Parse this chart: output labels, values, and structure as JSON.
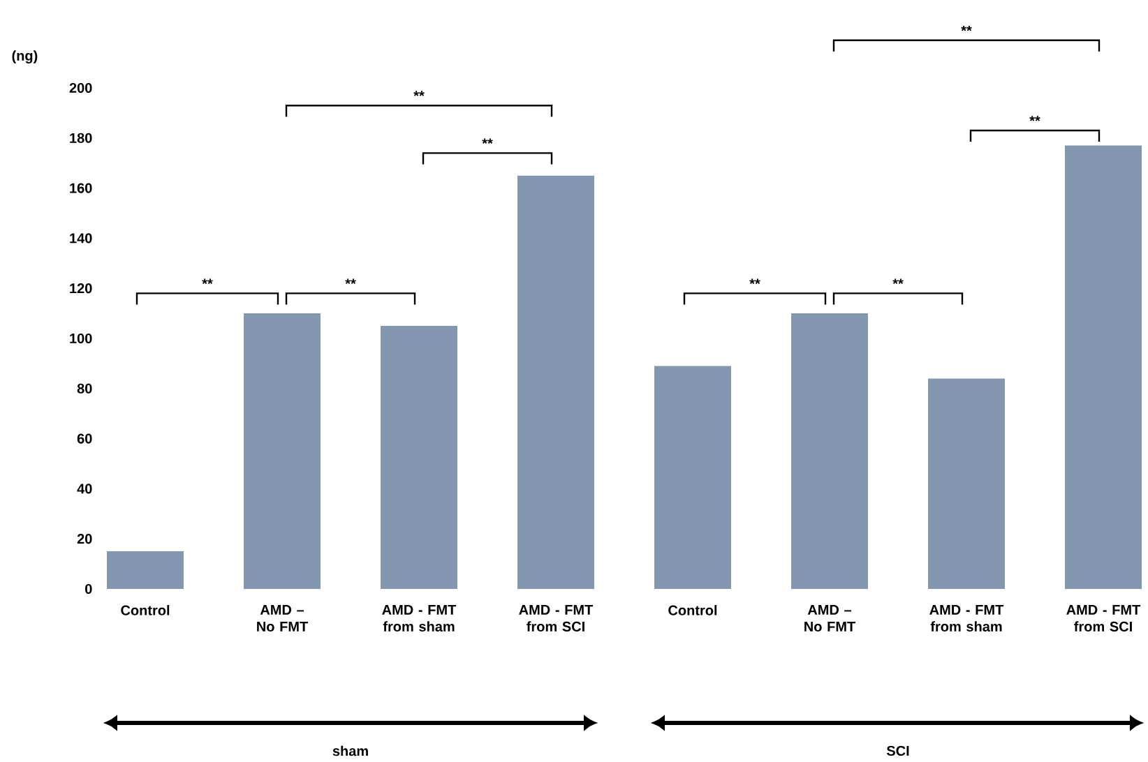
{
  "chart_data": {
    "type": "bar",
    "ylabel": "(ng)",
    "categories": [
      "Control",
      "AMD – No FMT",
      "AMD - FMT from sham",
      "AMD - FMT from SCI",
      "Control",
      "AMD – No FMT",
      "AMD - FMT from sham",
      "AMD - FMT from SCI"
    ],
    "values": [
      15,
      110,
      105,
      165,
      89,
      110,
      84,
      177
    ],
    "color": "#8497b0",
    "ylim": [
      0,
      200
    ],
    "yticks": [
      0,
      20,
      40,
      60,
      80,
      100,
      120,
      140,
      160,
      180,
      200
    ],
    "annotations": [
      "**",
      "**",
      "**",
      "**",
      "**",
      "**",
      "**",
      "**",
      "sham",
      "SCI"
    ]
  }
}
